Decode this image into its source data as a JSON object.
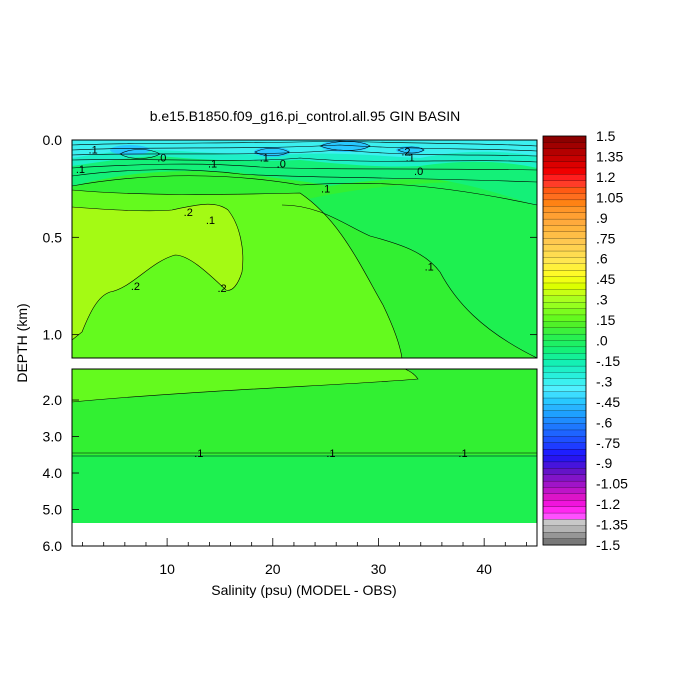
{
  "chart_data": {
    "type": "contour",
    "title": "b.e15.B1850.f09_g16.pi_control.all.95 GIN BASIN",
    "xlabel": "Salinity (psu) (MODEL - OBS)",
    "ylabel": "DEPTH (km)",
    "xlim": [
      1,
      45
    ],
    "x_ticks": [
      "10",
      "20",
      "30",
      "40"
    ],
    "upper_panel": {
      "ylim": [
        0.0,
        1.12
      ],
      "y_ticks": [
        "0.0",
        "0.5",
        "1.0"
      ]
    },
    "lower_panel": {
      "ylim": [
        1.15,
        6.0
      ],
      "y_ticks": [
        "2.0",
        "3.0",
        "4.0",
        "5.0",
        "6.0"
      ]
    },
    "contour_labels": [
      {
        "text": ".1",
        "x": 3.0,
        "y": 0.05
      },
      {
        "text": ".1",
        "x": 1.8,
        "y": 0.15
      },
      {
        "text": ".0",
        "x": 9.5,
        "y": 0.09
      },
      {
        "text": ".1",
        "x": 14.3,
        "y": 0.12
      },
      {
        "text": ".1",
        "x": 19.2,
        "y": 0.09
      },
      {
        "text": ".0",
        "x": 20.8,
        "y": 0.12
      },
      {
        "text": ".2",
        "x": 32.6,
        "y": 0.06
      },
      {
        "text": ".1",
        "x": 33.0,
        "y": 0.09
      },
      {
        "text": ".0",
        "x": 33.8,
        "y": 0.16
      },
      {
        "text": ".1",
        "x": 25.0,
        "y": 0.25
      },
      {
        "text": ".2",
        "x": 12.0,
        "y": 0.37
      },
      {
        "text": ".1",
        "x": 14.1,
        "y": 0.41
      },
      {
        "text": ".1",
        "x": 34.8,
        "y": 0.65
      },
      {
        "text": ".2",
        "x": 7.0,
        "y": 0.75
      },
      {
        "text": ".2",
        "x": 15.2,
        "y": 0.76
      },
      {
        "text": ".1",
        "x": 13.0,
        "y": 3.45
      },
      {
        "text": ".1",
        "x": 25.5,
        "y": 3.45
      },
      {
        "text": ".1",
        "x": 38.0,
        "y": 3.45
      }
    ],
    "colorbar": {
      "labels": [
        "1.5",
        "1.35",
        "1.2",
        "1.05",
        ".9",
        ".75",
        ".6",
        ".45",
        ".3",
        ".15",
        ".0",
        "-.15",
        "-.3",
        "-.45",
        "-.6",
        "-.75",
        "-.9",
        "-1.05",
        "-1.2",
        "-1.35",
        "-1.5"
      ],
      "colors": [
        "#8c0000",
        "#a00000",
        "#b40000",
        "#c80000",
        "#dc0000",
        "#f00000",
        "#ff1e1e",
        "#ff3c28",
        "#ff5a14",
        "#ff6e1e",
        "#ff8214",
        "#ff9628",
        "#ffa032",
        "#ffaa3c",
        "#ffb43c",
        "#ffbe46",
        "#ffc850",
        "#ffd250",
        "#ffdc50",
        "#ffe650",
        "#fff03c",
        "#fffa28",
        "#f0ff14",
        "#dcff00",
        "#c8ff14",
        "#aaff1e",
        "#96ff1e",
        "#7cfc1e",
        "#64fa1e",
        "#50f028",
        "#3cf03c",
        "#28f050",
        "#1ef064",
        "#14f078",
        "#14f096",
        "#14f0b4",
        "#1ef0c8",
        "#28f0dc",
        "#3cf0f0",
        "#50f0ff",
        "#3cdcff",
        "#28c8ff",
        "#28b4ff",
        "#1ea0ff",
        "#1e8cff",
        "#1e78ff",
        "#1e64ff",
        "#1e50ff",
        "#1e3cff",
        "#1e1eff",
        "#2814f0",
        "#4614dc",
        "#6414c8",
        "#8214c8",
        "#a014c8",
        "#be14c8",
        "#dc14c8",
        "#f014dc",
        "#ff28f0",
        "#ff50ff",
        "#c8c8c8",
        "#b4b4b4",
        "#969696",
        "#787878"
      ]
    }
  }
}
